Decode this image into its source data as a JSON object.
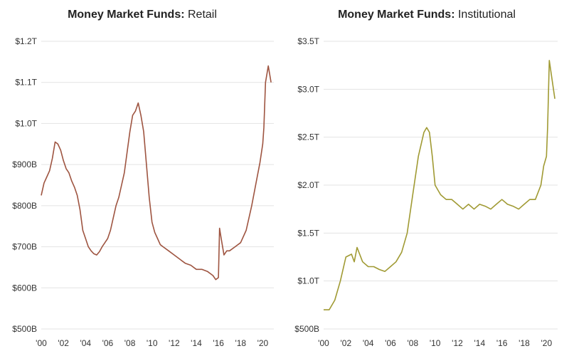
{
  "chart_data": [
    {
      "type": "line",
      "title": "Money Market Funds:",
      "subtitle": "Retail",
      "color": "#9e5440",
      "ylim": [
        500,
        1200
      ],
      "xlim": [
        2000,
        2021
      ],
      "y_ticks": [
        {
          "value": 1200,
          "label": "$1.2T"
        },
        {
          "value": 1100,
          "label": "$1.1T"
        },
        {
          "value": 1000,
          "label": "$1.0T"
        },
        {
          "value": 900,
          "label": "$900B"
        },
        {
          "value": 800,
          "label": "$800B"
        },
        {
          "value": 700,
          "label": "$700B"
        },
        {
          "value": 600,
          "label": "$600B"
        },
        {
          "value": 500,
          "label": "$500B"
        }
      ],
      "x_ticks": [
        {
          "value": 2000,
          "label": "'00"
        },
        {
          "value": 2002,
          "label": "'02"
        },
        {
          "value": 2004,
          "label": "'04"
        },
        {
          "value": 2006,
          "label": "'06"
        },
        {
          "value": 2008,
          "label": "'08"
        },
        {
          "value": 2010,
          "label": "'10"
        },
        {
          "value": 2012,
          "label": "'12"
        },
        {
          "value": 2014,
          "label": "'14"
        },
        {
          "value": 2016,
          "label": "'16"
        },
        {
          "value": 2018,
          "label": "'18"
        },
        {
          "value": 2020,
          "label": "'20"
        }
      ],
      "series": [
        {
          "x": [
            2000.0,
            2000.25,
            2000.5,
            2000.75,
            2001.0,
            2001.25,
            2001.5,
            2001.75,
            2002.0,
            2002.25,
            2002.5,
            2002.75,
            2003.0,
            2003.25,
            2003.5,
            2003.75,
            2004.0,
            2004.25,
            2004.5,
            2004.75,
            2005.0,
            2005.25,
            2005.5,
            2005.75,
            2006.0,
            2006.25,
            2006.5,
            2006.75,
            2007.0,
            2007.25,
            2007.5,
            2007.75,
            2008.0,
            2008.25,
            2008.5,
            2008.75,
            2009.0,
            2009.25,
            2009.5,
            2009.75,
            2010.0,
            2010.25,
            2010.5,
            2010.75,
            2011.0,
            2011.5,
            2012.0,
            2012.5,
            2013.0,
            2013.5,
            2014.0,
            2014.5,
            2015.0,
            2015.5,
            2015.75,
            2016.0,
            2016.1,
            2016.25,
            2016.5,
            2016.75,
            2017.0,
            2017.5,
            2018.0,
            2018.5,
            2019.0,
            2019.5,
            2019.75,
            2020.0,
            2020.1,
            2020.25,
            2020.5,
            2020.75
          ],
          "y": [
            825,
            855,
            870,
            885,
            915,
            955,
            950,
            935,
            910,
            890,
            880,
            860,
            845,
            825,
            790,
            740,
            720,
            700,
            690,
            683,
            680,
            688,
            700,
            710,
            720,
            740,
            770,
            800,
            820,
            850,
            880,
            930,
            980,
            1020,
            1030,
            1050,
            1020,
            980,
            900,
            820,
            760,
            735,
            720,
            705,
            700,
            690,
            680,
            670,
            660,
            655,
            645,
            645,
            640,
            630,
            620,
            625,
            745,
            720,
            680,
            690,
            690,
            700,
            710,
            740,
            800,
            870,
            905,
            950,
            990,
            1100,
            1140,
            1100
          ]
        }
      ]
    },
    {
      "type": "line",
      "title": "Money Market Funds:",
      "subtitle": "Institutional",
      "color": "#a09a33",
      "ylim": [
        500,
        3500
      ],
      "xlim": [
        2000,
        2021
      ],
      "y_ticks": [
        {
          "value": 3500,
          "label": "$3.5T"
        },
        {
          "value": 3000,
          "label": "$3.0T"
        },
        {
          "value": 2500,
          "label": "$2.5T"
        },
        {
          "value": 2000,
          "label": "$2.0T"
        },
        {
          "value": 1500,
          "label": "$1.5T"
        },
        {
          "value": 1000,
          "label": "$1.0T"
        },
        {
          "value": 500,
          "label": "$500B"
        }
      ],
      "x_ticks": [
        {
          "value": 2000,
          "label": "'00"
        },
        {
          "value": 2002,
          "label": "'02"
        },
        {
          "value": 2004,
          "label": "'04"
        },
        {
          "value": 2006,
          "label": "'06"
        },
        {
          "value": 2008,
          "label": "'08"
        },
        {
          "value": 2010,
          "label": "'10"
        },
        {
          "value": 2012,
          "label": "'12"
        },
        {
          "value": 2014,
          "label": "'14"
        },
        {
          "value": 2016,
          "label": "'16"
        },
        {
          "value": 2018,
          "label": "'18"
        },
        {
          "value": 2020,
          "label": "'20"
        }
      ],
      "series": [
        {
          "x": [
            2000.0,
            2000.5,
            2001.0,
            2001.5,
            2002.0,
            2002.5,
            2002.75,
            2003.0,
            2003.5,
            2004.0,
            2004.5,
            2005.0,
            2005.5,
            2006.0,
            2006.5,
            2007.0,
            2007.5,
            2008.0,
            2008.5,
            2009.0,
            2009.25,
            2009.5,
            2009.75,
            2010.0,
            2010.5,
            2011.0,
            2011.5,
            2012.0,
            2012.5,
            2013.0,
            2013.5,
            2014.0,
            2014.5,
            2015.0,
            2015.5,
            2016.0,
            2016.5,
            2017.0,
            2017.5,
            2018.0,
            2018.5,
            2019.0,
            2019.5,
            2019.75,
            2020.0,
            2020.1,
            2020.25,
            2020.5,
            2020.75
          ],
          "y": [
            700,
            700,
            800,
            1000,
            1250,
            1280,
            1200,
            1350,
            1200,
            1150,
            1150,
            1120,
            1100,
            1150,
            1200,
            1300,
            1500,
            1900,
            2300,
            2550,
            2600,
            2550,
            2300,
            2000,
            1900,
            1850,
            1850,
            1800,
            1750,
            1800,
            1750,
            1800,
            1780,
            1750,
            1800,
            1850,
            1800,
            1780,
            1750,
            1800,
            1850,
            1850,
            2000,
            2200,
            2300,
            2600,
            3300,
            3100,
            2900
          ]
        }
      ]
    }
  ]
}
